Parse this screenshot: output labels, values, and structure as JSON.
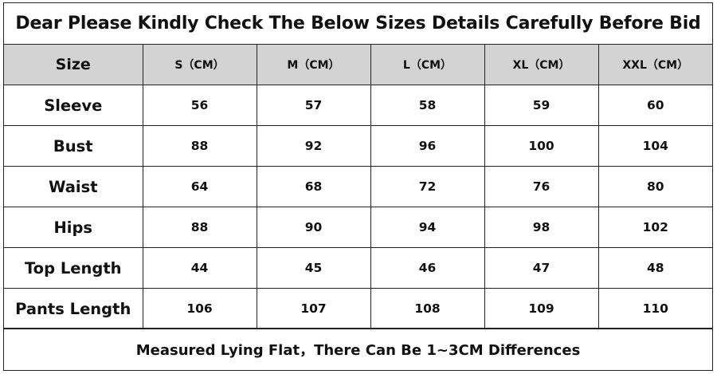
{
  "title": "Dear Please Kindly Check The Below Sizes Details Carefully Before Bid",
  "table": {
    "header": [
      "Size",
      "S（CM）",
      "M（CM）",
      "L（CM）",
      "XL（CM）",
      "XXL（CM）"
    ],
    "rows": [
      {
        "label": "Sleeve",
        "values": [
          "56",
          "57",
          "58",
          "59",
          "60"
        ]
      },
      {
        "label": "Bust",
        "values": [
          "88",
          "92",
          "96",
          "100",
          "104"
        ]
      },
      {
        "label": "Waist",
        "values": [
          "64",
          "68",
          "72",
          "76",
          "80"
        ]
      },
      {
        "label": "Hips",
        "values": [
          "88",
          "90",
          "94",
          "98",
          "102"
        ]
      },
      {
        "label": "Top Length",
        "values": [
          "44",
          "45",
          "46",
          "47",
          "48"
        ]
      },
      {
        "label": "Pants Length",
        "values": [
          "106",
          "107",
          "108",
          "109",
          "110"
        ]
      }
    ]
  },
  "footer": "Measured Lying Flat，There Can Be 1~3CM Differences",
  "colors": {
    "header_bg": "#d3d3d3",
    "border": "#222222",
    "text": "#111111"
  }
}
